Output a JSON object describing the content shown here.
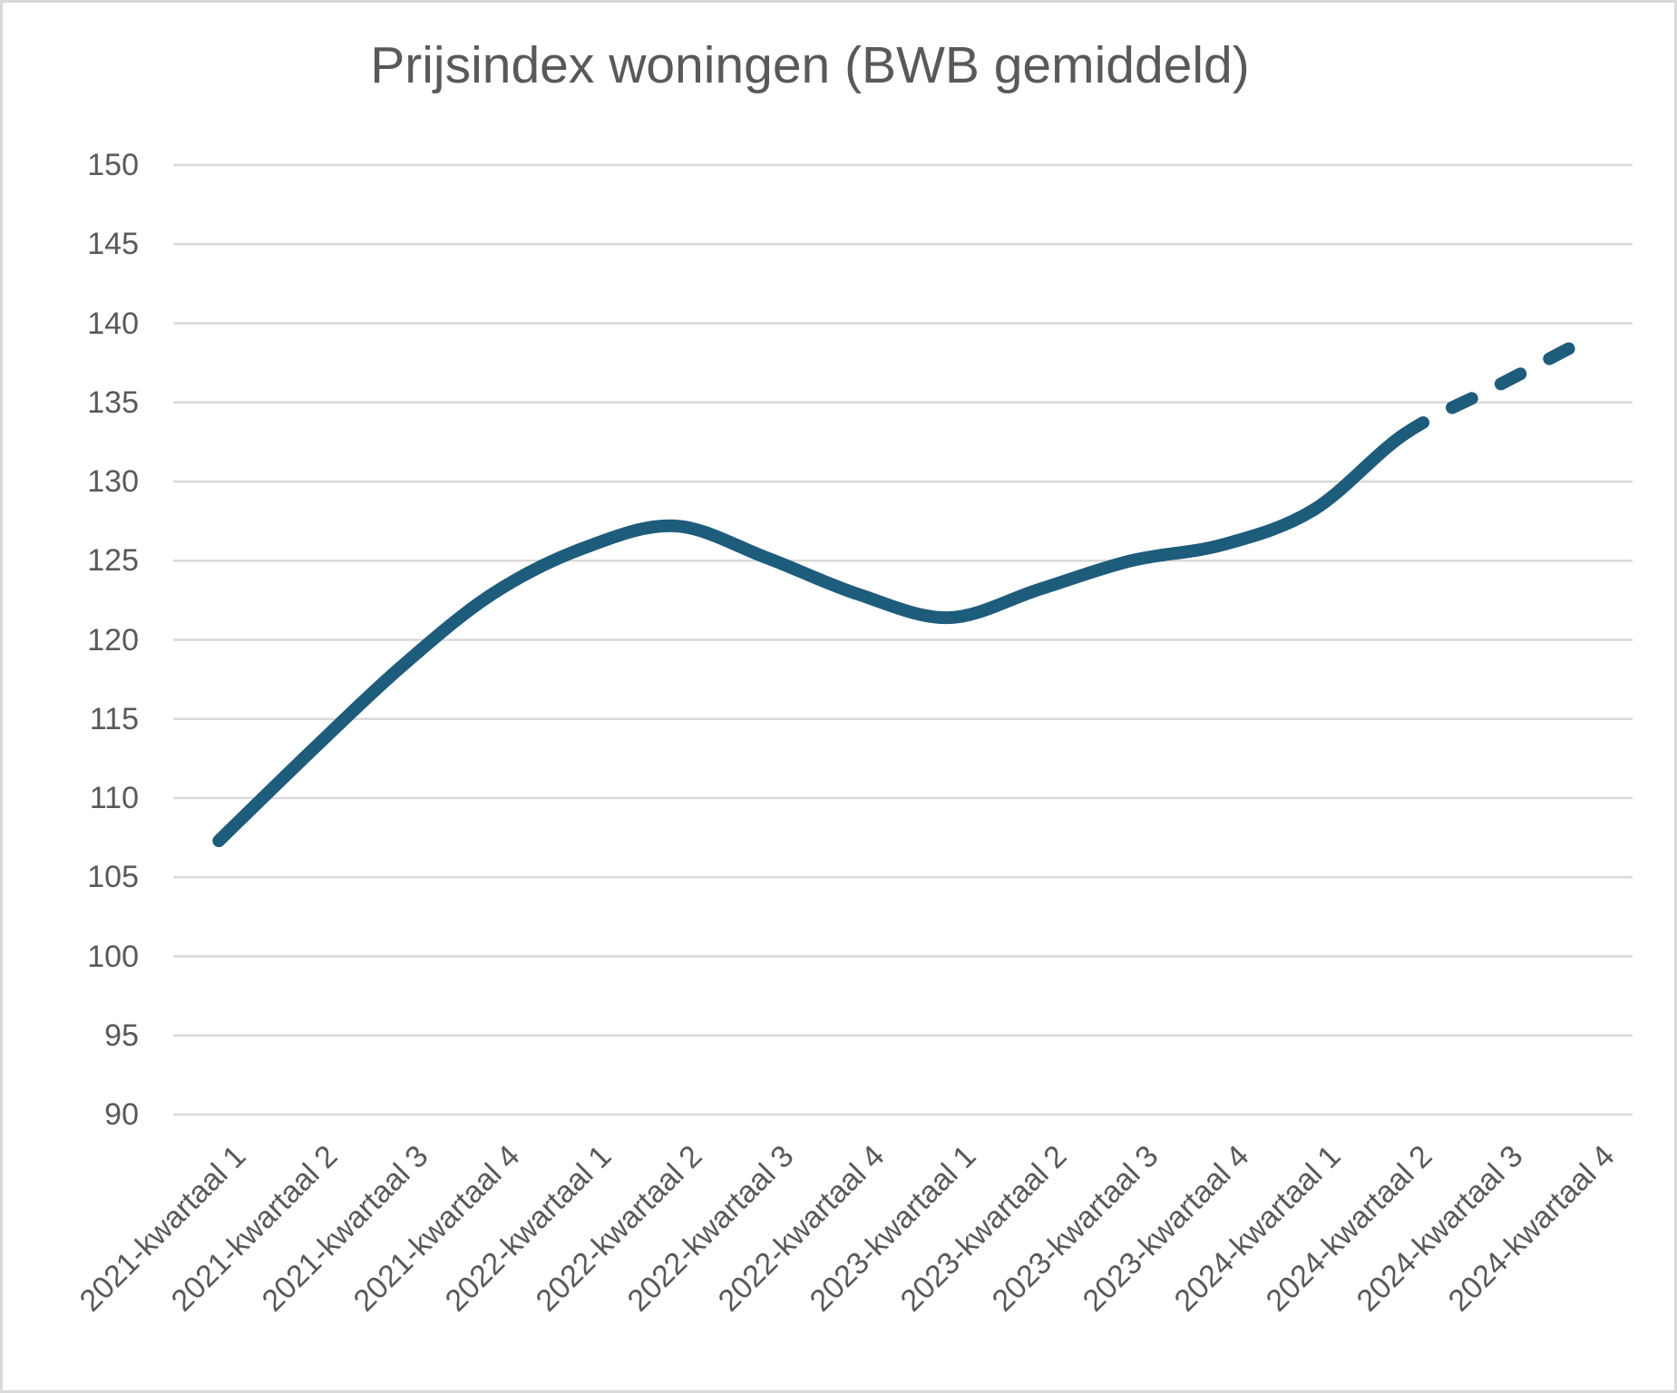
{
  "chart_data": {
    "type": "line",
    "title": "Prijsindex woningen (BWB gemiddeld)",
    "categories": [
      "2021-kwartaal 1",
      "2021-kwartaal 2",
      "2021-kwartaal 3",
      "2021-kwartaal 4",
      "2022-kwartaal 1",
      "2022-kwartaal 2",
      "2022-kwartaal 3",
      "2022-kwartaal 4",
      "2023-kwartaal 1",
      "2023-kwartaal 2",
      "2023-kwartaal 3",
      "2023-kwartaal 4",
      "2024-kwartaal 1",
      "2024-kwartaal 2",
      "2024-kwartaal 3",
      "2024-kwartaal 4"
    ],
    "series": [
      {
        "values": [
          107.3,
          112.9,
          118.3,
          122.9,
          125.8,
          127.2,
          125.2,
          122.9,
          121.4,
          123.2,
          125.0,
          126.0,
          128.2,
          133.0,
          136.0,
          139.0
        ],
        "dashed_from_index": 13
      }
    ],
    "xlabel": "",
    "ylabel": "",
    "ylim": [
      90,
      150
    ],
    "ytick_step": 5,
    "yticks": [
      150,
      145,
      140,
      135,
      130,
      125,
      120,
      115,
      110,
      105,
      100,
      95,
      90
    ],
    "grid": "horizontal",
    "legend": "none",
    "smooth": true,
    "colors": {
      "line": "#1E5C7C",
      "gridline": "#D9D9D9",
      "text": "#595959",
      "background": "#FFFFFF",
      "border": "#D9D9D9"
    }
  }
}
